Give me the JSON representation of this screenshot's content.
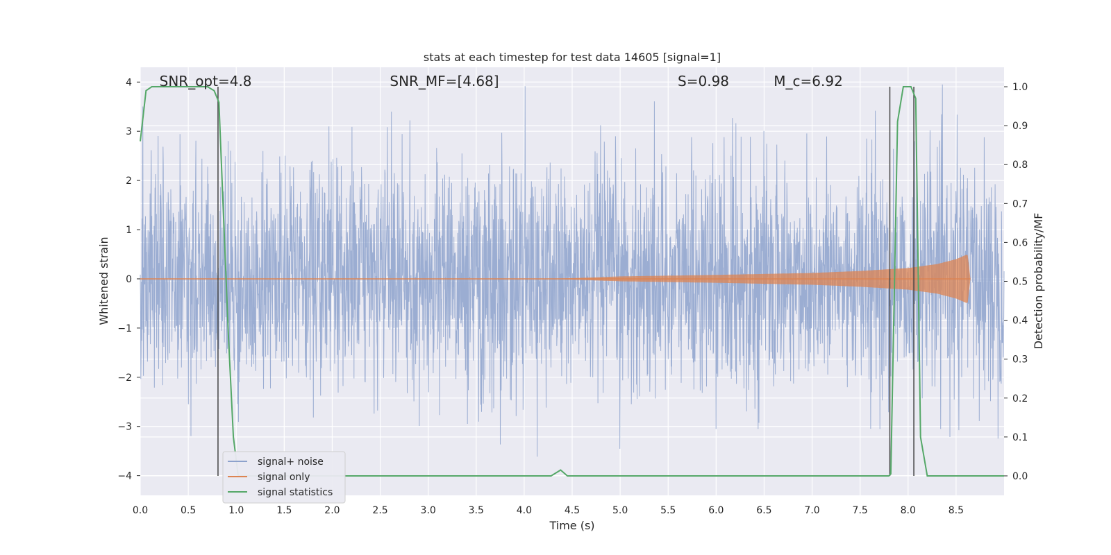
{
  "chart_data": {
    "type": "line",
    "title": "stats at each timestep for test data 14605 [signal=1]",
    "xlabel": "Time (s)",
    "ylabel_left": "Whitened strain",
    "ylabel_right": "Detection probability/MF",
    "xlim": [
      0.0,
      9.0
    ],
    "ylim_left": [
      -4.4,
      4.3
    ],
    "ylim_right": [
      -0.05,
      1.05
    ],
    "x_ticks": [
      "0.0",
      "0.5",
      "1.0",
      "1.5",
      "2.0",
      "2.5",
      "3.0",
      "3.5",
      "4.0",
      "4.5",
      "5.0",
      "5.5",
      "6.0",
      "6.5",
      "7.0",
      "7.5",
      "8.0",
      "8.5"
    ],
    "y_ticks_left": [
      "4",
      "3",
      "2",
      "1",
      "0",
      "−1",
      "−2",
      "−3",
      "−4"
    ],
    "y_ticks_right": [
      "1.0",
      "0.9",
      "0.8",
      "0.7",
      "0.6",
      "0.5",
      "0.4",
      "0.3",
      "0.2",
      "0.1",
      "0.0"
    ],
    "grid": true,
    "legend_placement": "lower-left",
    "annotations": [
      {
        "text": "SNR_opt=4.8",
        "x": 0.2
      },
      {
        "text": "SNR_MF=[4.68]",
        "x": 2.6
      },
      {
        "text": "S=0.98",
        "x": 5.6
      },
      {
        "text": "M_c=6.92",
        "x": 6.6
      }
    ],
    "vertical_lines": [
      0.81,
      7.81,
      8.06
    ],
    "series": [
      {
        "name": "signal+ noise",
        "color": "#8da2cc",
        "description": "whitened strain noise, approximately within ±2.5 with spikes up to ±4"
      },
      {
        "name": "signal only",
        "color": "#dd8452",
        "envelope": {
          "x": [
            4.3,
            5.0,
            6.0,
            7.0,
            7.5,
            8.0,
            8.3,
            8.5,
            8.62,
            8.65
          ],
          "amplitude": [
            0.0,
            0.05,
            0.08,
            0.12,
            0.16,
            0.22,
            0.3,
            0.4,
            0.5,
            0.0
          ]
        }
      },
      {
        "name": "signal statistics",
        "color": "#55a868",
        "axis": "right",
        "x": [
          0.0,
          0.06,
          0.12,
          0.3,
          0.5,
          0.7,
          0.77,
          0.82,
          0.87,
          0.92,
          0.97,
          1.02,
          1.1,
          1.5,
          2.0,
          3.0,
          4.0,
          4.28,
          4.38,
          4.45,
          5.0,
          6.0,
          7.0,
          7.5,
          7.8,
          7.82,
          7.89,
          7.95,
          8.03,
          8.08,
          8.13,
          8.2,
          8.5,
          9.0
        ],
        "values": [
          0.86,
          0.99,
          1.0,
          1.0,
          1.0,
          1.0,
          0.99,
          0.96,
          0.65,
          0.35,
          0.1,
          0.0,
          0.0,
          0.0,
          0.0,
          0.0,
          0.0,
          0.0,
          0.015,
          0.0,
          0.0,
          0.0,
          0.0,
          0.0,
          0.0,
          0.005,
          0.91,
          1.0,
          1.0,
          0.97,
          0.1,
          0.0,
          0.0,
          0.0
        ]
      }
    ]
  }
}
